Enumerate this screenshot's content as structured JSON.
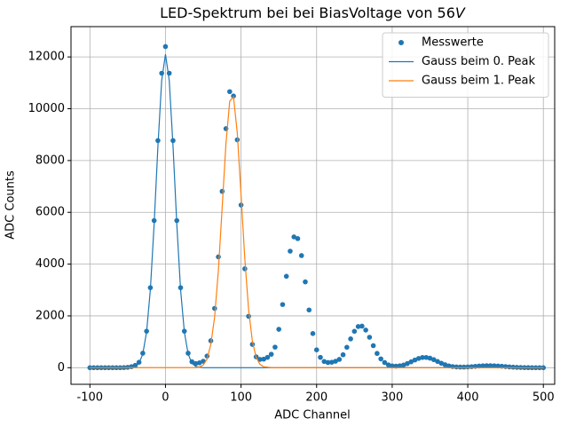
{
  "chart_data": {
    "type": "scatter",
    "title": "LED-Spektrum bei bei BiasVoltage von 56",
    "title_unit": "V",
    "x_label": "ADC Channel",
    "y_label": "ADC Counts",
    "xlim": [
      -125,
      515
    ],
    "ylim": [
      -640,
      13170
    ],
    "xticks": [
      -100,
      0,
      100,
      200,
      300,
      400,
      500
    ],
    "yticks": [
      0,
      2000,
      4000,
      6000,
      8000,
      10000,
      12000
    ],
    "grid": true,
    "legend": "upper right",
    "series": [
      {
        "name": "Messwerte",
        "kind": "scatter",
        "color": "#1f77b4",
        "x": [
          -100,
          -95,
          -90,
          -85,
          -80,
          -75,
          -70,
          -65,
          -60,
          -55,
          -50,
          -45,
          -40,
          -35,
          -30,
          -25,
          -20,
          -15,
          -10,
          -5,
          0,
          5,
          10,
          15,
          20,
          25,
          30,
          35,
          40,
          45,
          50,
          55,
          60,
          65,
          70,
          75,
          80,
          85,
          90,
          95,
          100,
          105,
          110,
          115,
          120,
          125,
          130,
          135,
          140,
          145,
          150,
          155,
          160,
          165,
          170,
          175,
          180,
          185,
          190,
          195,
          200,
          205,
          210,
          215,
          220,
          225,
          230,
          235,
          240,
          245,
          250,
          255,
          260,
          265,
          270,
          275,
          280,
          285,
          290,
          295,
          300,
          305,
          310,
          315,
          320,
          325,
          330,
          335,
          340,
          345,
          350,
          355,
          360,
          365,
          370,
          375,
          380,
          385,
          390,
          395,
          400,
          405,
          410,
          415,
          420,
          425,
          430,
          435,
          440,
          445,
          450,
          455,
          460,
          465,
          470,
          475,
          480,
          485,
          490,
          495,
          500
        ],
        "values": [
          0,
          0,
          0,
          0,
          0,
          0,
          0,
          0,
          0,
          5,
          15,
          40,
          90,
          210,
          560,
          1410,
          3090,
          5680,
          8770,
          11370,
          12400,
          11370,
          8770,
          5680,
          3090,
          1410,
          560,
          230,
          160,
          190,
          250,
          450,
          1040,
          2290,
          4280,
          6810,
          9230,
          10660,
          10490,
          8800,
          6280,
          3820,
          1985,
          900,
          420,
          320,
          330,
          400,
          520,
          795,
          1484,
          2440,
          3530,
          4500,
          5050,
          4985,
          4330,
          3315,
          2230,
          1320,
          690,
          400,
          240,
          200,
          210,
          250,
          320,
          500,
          789,
          1113,
          1405,
          1590,
          1605,
          1453,
          1176,
          852,
          552,
          340,
          200,
          110,
          70,
          60,
          75,
          103,
          160,
          228,
          298,
          358,
          394,
          397,
          368,
          312,
          242,
          173,
          115,
          70,
          45,
          30,
          25,
          25,
          30,
          41,
          53,
          65,
          74,
          79,
          80,
          75,
          67,
          56,
          44,
          32,
          22,
          14,
          9,
          6,
          3,
          2,
          1,
          0,
          0
        ]
      },
      {
        "name": "Gauss beim 0. Peak",
        "kind": "line",
        "color": "#1f77b4",
        "x": [
          -100,
          -50,
          -40,
          -35,
          -30,
          -25,
          -20,
          -15,
          -10,
          -5,
          0,
          5,
          10,
          15,
          20,
          25,
          30,
          35,
          40,
          50,
          500
        ],
        "values": [
          0,
          0,
          47,
          170,
          530,
          1380,
          3010,
          5540,
          8550,
          11090,
          12100,
          11090,
          8550,
          5540,
          3010,
          1380,
          530,
          170,
          47,
          0,
          0
        ]
      },
      {
        "name": "Gauss beim 1. Peak",
        "kind": "line",
        "color": "#ff7f0e",
        "x": [
          -100,
          40,
          45,
          50,
          55,
          60,
          65,
          70,
          75,
          80,
          85,
          90,
          95,
          100,
          105,
          110,
          115,
          120,
          125,
          130,
          140,
          500
        ],
        "values": [
          0,
          6,
          28,
          103,
          330,
          900,
          1950,
          3750,
          6170,
          8640,
          10290,
          10460,
          9070,
          6680,
          4200,
          2250,
          1020,
          400,
          131,
          37,
          2,
          0
        ]
      }
    ]
  }
}
